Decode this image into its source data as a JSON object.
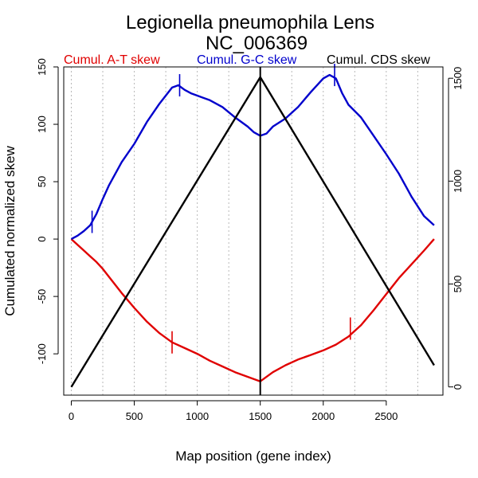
{
  "chart_data": {
    "type": "line",
    "title": "Legionella pneumophila Lens",
    "subtitle": "NC_006369",
    "xlabel": "Map position (gene index)",
    "ylabel": "Cumulated normalized skew",
    "xlim": [
      -60,
      2950
    ],
    "ylim": [
      -136,
      150
    ],
    "y2lim": [
      -40,
      1555
    ],
    "x_ticks": [
      0,
      500,
      1000,
      1500,
      2000,
      2500
    ],
    "y_ticks": [
      -100,
      -50,
      0,
      50,
      100,
      150
    ],
    "y2_ticks": [
      0,
      500,
      1000,
      1500
    ],
    "x_tick_labels": [
      "0",
      "500",
      "1000",
      "1500",
      "2000",
      "2500"
    ],
    "y_tick_labels": [
      "-100",
      "-50",
      "0",
      "50",
      "100",
      "150"
    ],
    "y2_tick_labels": [
      "0",
      "500",
      "1000",
      "1500"
    ],
    "vgrid": [
      0,
      250,
      500,
      750,
      1000,
      1250,
      1500,
      1750,
      2000,
      2250,
      2500,
      2750
    ],
    "legend": [
      {
        "label": "Cumul. A-T skew",
        "color": "#e00000"
      },
      {
        "label": "Cumul. G-C skew",
        "color": "#0000cc"
      },
      {
        "label": "Cumul. CDS skew",
        "color": "#000000"
      }
    ],
    "series": [
      {
        "name": "Cumul. A-T skew",
        "color": "#e00000",
        "axis": "left",
        "x": [
          0,
          100,
          150,
          200,
          250,
          300,
          400,
          500,
          600,
          700,
          800,
          900,
          1000,
          1100,
          1200,
          1300,
          1400,
          1500,
          1600,
          1700,
          1800,
          1900,
          2000,
          2100,
          2200,
          2300,
          2400,
          2500,
          2600,
          2700,
          2800,
          2880
        ],
        "y": [
          0,
          -10,
          -15,
          -20,
          -26,
          -33,
          -47,
          -60,
          -72,
          -82,
          -90,
          -95,
          -100,
          -106,
          -111,
          -116,
          -120,
          -124,
          -116,
          -110,
          -105,
          -101,
          -97,
          -92,
          -85,
          -75,
          -62,
          -48,
          -34,
          -22,
          -10,
          0
        ]
      },
      {
        "name": "Cumul. G-C skew",
        "color": "#0000cc",
        "axis": "left",
        "x": [
          0,
          50,
          100,
          150,
          200,
          250,
          300,
          400,
          500,
          600,
          700,
          750,
          800,
          850,
          900,
          950,
          1000,
          1100,
          1200,
          1300,
          1400,
          1450,
          1500,
          1550,
          1600,
          1700,
          1800,
          1900,
          2000,
          2050,
          2100,
          2150,
          2200,
          2300,
          2400,
          2500,
          2600,
          2700,
          2800,
          2880
        ],
        "y": [
          0,
          3,
          7,
          12,
          22,
          35,
          47,
          67,
          83,
          102,
          118,
          125,
          132,
          134,
          130,
          127,
          125,
          121,
          115,
          106,
          98,
          93,
          90,
          92,
          98,
          105,
          115,
          128,
          140,
          143,
          140,
          127,
          117,
          106,
          90,
          74,
          57,
          37,
          20,
          12
        ]
      },
      {
        "name": "Cumul. CDS skew",
        "color": "#000000",
        "axis": "right",
        "x": [
          0,
          1500,
          2880
        ],
        "y": [
          0,
          1505,
          105
        ]
      }
    ],
    "markers": [
      {
        "series": "Cumul. A-T skew",
        "x": 800,
        "y": -90
      },
      {
        "series": "Cumul. A-T skew",
        "x": 2215,
        "y": -78
      },
      {
        "series": "Cumul. G-C skew",
        "x": 165,
        "y": 15
      },
      {
        "series": "Cumul. G-C skew",
        "x": 860,
        "y": 134
      },
      {
        "series": "Cumul. G-C skew",
        "x": 2090,
        "y": 143
      }
    ],
    "vlines": [
      1500
    ]
  }
}
